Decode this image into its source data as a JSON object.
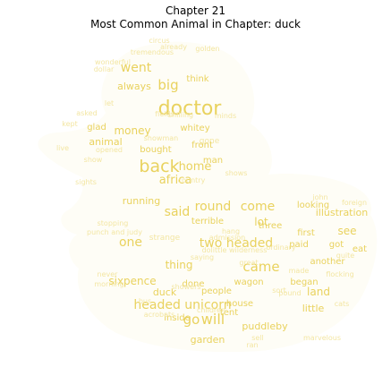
{
  "title_line1": "Chapter 21",
  "title_line2": "Most Common Animal in Chapter: duck",
  "colors": {
    "word": "#e9d25e",
    "word_faint": "#f3e6a3",
    "silhouette": "#fefdf6"
  },
  "shape_icon": "duck-silhouette",
  "words": [
    {
      "text": "doctor",
      "weight": 1.0
    },
    {
      "text": "back",
      "weight": 0.8
    },
    {
      "text": "big",
      "weight": 0.6
    },
    {
      "text": "went",
      "weight": 0.55
    },
    {
      "text": "will",
      "weight": 0.65
    },
    {
      "text": "go",
      "weight": 0.6
    },
    {
      "text": "two headed",
      "weight": 0.55
    },
    {
      "text": "came",
      "weight": 0.6
    },
    {
      "text": "said",
      "weight": 0.5
    },
    {
      "text": "one",
      "weight": 0.55
    },
    {
      "text": "come",
      "weight": 0.5
    },
    {
      "text": "round",
      "weight": 0.5
    },
    {
      "text": "headed unicorn",
      "weight": 0.5
    },
    {
      "text": "africa",
      "weight": 0.45
    },
    {
      "text": "home",
      "weight": 0.45
    },
    {
      "text": "money",
      "weight": 0.4
    },
    {
      "text": "sixpence",
      "weight": 0.4
    },
    {
      "text": "thing",
      "weight": 0.4
    },
    {
      "text": "lot",
      "weight": 0.4
    },
    {
      "text": "land",
      "weight": 0.4
    },
    {
      "text": "see",
      "weight": 0.4
    },
    {
      "text": "always",
      "weight": 0.35
    },
    {
      "text": "think",
      "weight": 0.3
    },
    {
      "text": "animal",
      "weight": 0.35
    },
    {
      "text": "glad",
      "weight": 0.3
    },
    {
      "text": "whitey",
      "weight": 0.3
    },
    {
      "text": "gone",
      "weight": 0.25
    },
    {
      "text": "front",
      "weight": 0.3
    },
    {
      "text": "bought",
      "weight": 0.3
    },
    {
      "text": "man",
      "weight": 0.3
    },
    {
      "text": "running",
      "weight": 0.35
    },
    {
      "text": "terrible",
      "weight": 0.3
    },
    {
      "text": "illustration",
      "weight": 0.35
    },
    {
      "text": "looking",
      "weight": 0.3
    },
    {
      "text": "another",
      "weight": 0.3
    },
    {
      "text": "paid",
      "weight": 0.3
    },
    {
      "text": "first",
      "weight": 0.3
    },
    {
      "text": "began",
      "weight": 0.3
    },
    {
      "text": "got",
      "weight": 0.3
    },
    {
      "text": "duck",
      "weight": 0.35
    },
    {
      "text": "people",
      "weight": 0.3
    },
    {
      "text": "wagon",
      "weight": 0.3
    },
    {
      "text": "house",
      "weight": 0.3
    },
    {
      "text": "puddleby",
      "weight": 0.35
    },
    {
      "text": "garden",
      "weight": 0.35
    },
    {
      "text": "little",
      "weight": 0.35
    },
    {
      "text": "inside",
      "weight": 0.3
    },
    {
      "text": "tent",
      "weight": 0.3
    },
    {
      "text": "three",
      "weight": 0.3
    },
    {
      "text": "done",
      "weight": 0.3
    },
    {
      "text": "strange",
      "weight": 0.25
    },
    {
      "text": "eat",
      "weight": 0.3
    },
    {
      "text": "hang",
      "weight": 0.2
    },
    {
      "text": "acrobats",
      "weight": 0.2
    },
    {
      "text": "tremendous",
      "weight": 0.15
    },
    {
      "text": "stopping",
      "weight": 0.2
    },
    {
      "text": "punch and judy",
      "weight": 0.2
    },
    {
      "text": "children",
      "weight": 0.2
    },
    {
      "text": "country",
      "weight": 0.15
    },
    {
      "text": "shows",
      "weight": 0.15
    },
    {
      "text": "already",
      "weight": 0.15
    },
    {
      "text": "circus",
      "weight": 0.15
    },
    {
      "text": "golden",
      "weight": 0.15
    },
    {
      "text": "wonderful",
      "weight": 0.15
    },
    {
      "text": "dollar",
      "weight": 0.15
    },
    {
      "text": "asked",
      "weight": 0.15
    },
    {
      "text": "kept",
      "weight": 0.15
    },
    {
      "text": "live",
      "weight": 0.15
    },
    {
      "text": "show",
      "weight": 0.15
    },
    {
      "text": "opened",
      "weight": 0.15
    },
    {
      "text": "showman",
      "weight": 0.15
    },
    {
      "text": "fields",
      "weight": 0.15
    },
    {
      "text": "shilling",
      "weight": 0.15
    },
    {
      "text": "minds",
      "weight": 0.15
    },
    {
      "text": "sights",
      "weight": 0.15
    },
    {
      "text": "admission",
      "weight": 0.15
    },
    {
      "text": "ordinary",
      "weight": 0.15
    },
    {
      "text": "quite",
      "weight": 0.15
    },
    {
      "text": "never",
      "weight": 0.15
    },
    {
      "text": "morning",
      "weight": 0.15
    },
    {
      "text": "showers",
      "weight": 0.15
    },
    {
      "text": "saying",
      "weight": 0.15
    },
    {
      "text": "great",
      "weight": 0.15
    },
    {
      "text": "dolittle wilderness",
      "weight": 0.15
    },
    {
      "text": "foreign",
      "weight": 0.15
    },
    {
      "text": "flocking",
      "weight": 0.15
    },
    {
      "text": "cats",
      "weight": 0.15
    },
    {
      "text": "marvelous",
      "weight": 0.15
    },
    {
      "text": "ran",
      "weight": 0.15
    },
    {
      "text": "sell",
      "weight": 0.15
    },
    {
      "text": "john",
      "weight": 0.15
    },
    {
      "text": "made",
      "weight": 0.15
    },
    {
      "text": "bus",
      "weight": 0.15
    },
    {
      "text": "let",
      "weight": 0.15
    },
    {
      "text": "sort",
      "weight": 0.15
    },
    {
      "text": "pound",
      "weight": 0.15
    }
  ]
}
